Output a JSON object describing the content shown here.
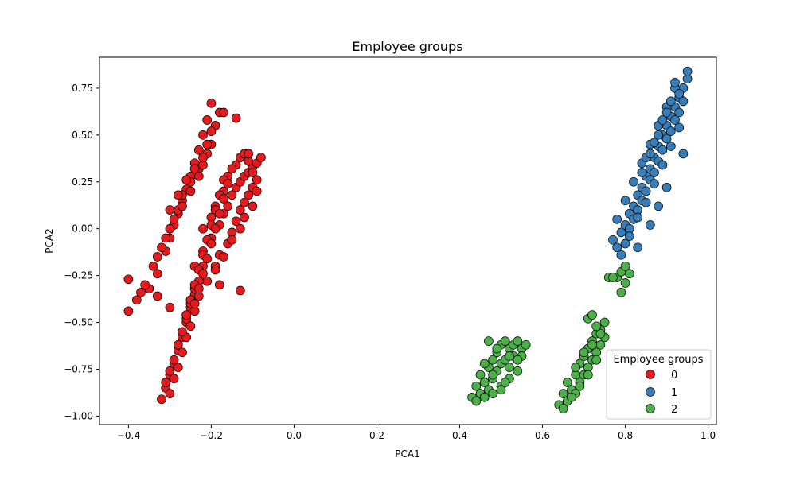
{
  "chart_data": {
    "type": "scatter",
    "title": "Employee groups",
    "xlabel": "PCA1",
    "ylabel": "PCA2",
    "xlim": [
      -0.47,
      1.02
    ],
    "ylim": [
      -1.045,
      0.915
    ],
    "xticks": [
      -0.4,
      -0.2,
      0.0,
      0.2,
      0.4,
      0.6,
      0.8,
      1.0
    ],
    "xtick_labels": [
      "−0.4",
      "−0.2",
      "0.0",
      "0.2",
      "0.4",
      "0.6",
      "0.8",
      "1.0"
    ],
    "yticks": [
      -1.0,
      -0.75,
      -0.5,
      -0.25,
      0.0,
      0.25,
      0.5,
      0.75
    ],
    "ytick_labels": [
      "−1.00",
      "−0.75",
      "−0.50",
      "−0.25",
      "0.00",
      "0.25",
      "0.50",
      "0.75"
    ],
    "grid": false,
    "legend": {
      "title": "Employee groups",
      "placement": "lower right"
    },
    "series": [
      {
        "name": "0",
        "color": "#e41a1c",
        "x": [
          -0.4,
          -0.38,
          -0.35,
          -0.33,
          -0.31,
          -0.3,
          -0.29,
          -0.28,
          -0.27,
          -0.26,
          -0.25,
          -0.24,
          -0.23,
          -0.22,
          -0.21,
          -0.36,
          -0.34,
          -0.32,
          -0.3,
          -0.28,
          -0.27,
          -0.25,
          -0.23,
          -0.21,
          -0.33,
          -0.31,
          -0.29,
          -0.27,
          -0.25,
          -0.23,
          -0.22,
          -0.2,
          -0.19,
          -0.3,
          -0.28,
          -0.26,
          -0.24,
          -0.22,
          -0.21,
          -0.2,
          -0.18,
          -0.24,
          -0.22,
          -0.2,
          -0.18,
          -0.17,
          -0.16,
          -0.15,
          -0.14,
          -0.13,
          -0.12,
          -0.11,
          -0.1,
          -0.09,
          -0.08,
          -0.21,
          -0.19,
          -0.18,
          -0.16,
          -0.15,
          -0.14,
          -0.13,
          -0.12,
          -0.11,
          -0.1,
          -0.09,
          -0.22,
          -0.2,
          -0.19,
          -0.17,
          -0.16,
          -0.14,
          -0.13,
          -0.12,
          -0.11,
          -0.1,
          -0.19,
          -0.17,
          -0.15,
          -0.13,
          -0.12,
          -0.1,
          -0.09,
          -0.32,
          -0.31,
          -0.3,
          -0.29,
          -0.28,
          -0.27,
          -0.26,
          -0.25,
          -0.24,
          -0.23,
          -0.22,
          -0.3,
          -0.29,
          -0.28,
          -0.27,
          -0.26,
          -0.25,
          -0.24,
          -0.23,
          -0.31,
          -0.3,
          -0.29,
          -0.28,
          -0.27,
          -0.26,
          -0.25,
          -0.24,
          -0.26,
          -0.25,
          -0.24,
          -0.23,
          -0.22,
          -0.21,
          -0.2,
          -0.19,
          -0.18,
          -0.17,
          -0.24,
          -0.23,
          -0.22,
          -0.21,
          -0.2,
          -0.19,
          -0.18,
          -0.17,
          -0.16,
          -0.15,
          -0.4,
          -0.37,
          -0.33,
          -0.3,
          -0.2,
          -0.17,
          -0.14,
          -0.11,
          -0.13,
          -0.18
        ],
        "y": [
          -0.44,
          -0.38,
          -0.32,
          -0.24,
          -0.12,
          -0.05,
          0.02,
          0.08,
          0.15,
          0.21,
          0.28,
          0.35,
          0.42,
          0.5,
          0.58,
          -0.3,
          -0.2,
          -0.1,
          0.0,
          0.1,
          0.18,
          0.25,
          0.32,
          0.4,
          -0.15,
          -0.05,
          0.05,
          0.12,
          0.2,
          0.28,
          0.34,
          0.45,
          0.55,
          0.1,
          0.18,
          0.26,
          0.32,
          0.38,
          0.45,
          0.52,
          0.62,
          -0.2,
          -0.12,
          -0.05,
          0.02,
          0.08,
          0.12,
          0.18,
          0.22,
          0.25,
          0.28,
          0.3,
          0.33,
          0.35,
          0.38,
          -0.28,
          -0.2,
          -0.14,
          -0.08,
          -0.02,
          0.04,
          0.1,
          0.14,
          0.18,
          0.22,
          0.26,
          0.0,
          0.06,
          0.12,
          0.2,
          0.28,
          0.34,
          0.38,
          0.4,
          0.36,
          0.3,
          -0.22,
          -0.15,
          -0.06,
          0.0,
          0.06,
          0.12,
          0.2,
          -0.91,
          -0.85,
          -0.78,
          -0.72,
          -0.65,
          -0.58,
          -0.5,
          -0.42,
          -0.35,
          -0.28,
          -0.2,
          -0.88,
          -0.8,
          -0.74,
          -0.66,
          -0.58,
          -0.52,
          -0.44,
          -0.36,
          -0.82,
          -0.76,
          -0.7,
          -0.62,
          -0.55,
          -0.48,
          -0.4,
          -0.32,
          -0.46,
          -0.38,
          -0.3,
          -0.22,
          -0.14,
          -0.06,
          0.02,
          0.1,
          0.18,
          0.26,
          -0.4,
          -0.32,
          -0.24,
          -0.16,
          -0.08,
          0.0,
          0.08,
          0.16,
          0.24,
          0.32,
          -0.27,
          -0.34,
          -0.36,
          -0.42,
          0.67,
          0.62,
          0.59,
          0.4,
          -0.33,
          -0.3
        ]
      },
      {
        "name": "1",
        "color": "#377eb8",
        "x": [
          0.77,
          0.78,
          0.79,
          0.8,
          0.8,
          0.81,
          0.81,
          0.82,
          0.82,
          0.83,
          0.83,
          0.84,
          0.84,
          0.85,
          0.85,
          0.86,
          0.86,
          0.87,
          0.87,
          0.88,
          0.88,
          0.89,
          0.89,
          0.9,
          0.9,
          0.91,
          0.91,
          0.92,
          0.92,
          0.93,
          0.93,
          0.94,
          0.94,
          0.95,
          0.78,
          0.8,
          0.82,
          0.84,
          0.86,
          0.88,
          0.9,
          0.92,
          0.81,
          0.83,
          0.85,
          0.87,
          0.89,
          0.91,
          0.93,
          0.79,
          0.83,
          0.86,
          0.88,
          0.9,
          0.94,
          0.85,
          0.87,
          0.89,
          0.91,
          0.92,
          0.84,
          0.86,
          0.88,
          0.9,
          0.93,
          0.95
        ],
        "y": [
          -0.06,
          -0.1,
          -0.02,
          0.02,
          -0.08,
          0.08,
          0.0,
          0.12,
          0.05,
          0.18,
          0.1,
          0.22,
          0.15,
          0.28,
          0.2,
          0.32,
          0.26,
          0.38,
          0.3,
          0.44,
          0.36,
          0.5,
          0.42,
          0.55,
          0.48,
          0.6,
          0.52,
          0.65,
          0.58,
          0.7,
          0.62,
          0.75,
          0.68,
          0.8,
          0.05,
          0.15,
          0.25,
          0.35,
          0.45,
          0.55,
          0.65,
          0.75,
          -0.04,
          0.06,
          0.14,
          0.24,
          0.34,
          0.44,
          0.54,
          -0.14,
          -0.1,
          0.02,
          0.12,
          0.22,
          0.4,
          0.38,
          0.46,
          0.58,
          0.68,
          0.78,
          0.3,
          0.4,
          0.5,
          0.62,
          0.72,
          0.84
        ]
      },
      {
        "name": "2",
        "color": "#4daf4a",
        "x": [
          0.43,
          0.44,
          0.45,
          0.45,
          0.46,
          0.47,
          0.47,
          0.48,
          0.48,
          0.49,
          0.49,
          0.5,
          0.5,
          0.51,
          0.51,
          0.52,
          0.52,
          0.53,
          0.53,
          0.54,
          0.55,
          0.55,
          0.56,
          0.44,
          0.46,
          0.48,
          0.5,
          0.52,
          0.54,
          0.46,
          0.48,
          0.5,
          0.52,
          0.54,
          0.47,
          0.49,
          0.51,
          0.64,
          0.65,
          0.66,
          0.66,
          0.67,
          0.68,
          0.68,
          0.69,
          0.69,
          0.7,
          0.7,
          0.71,
          0.71,
          0.72,
          0.72,
          0.73,
          0.73,
          0.74,
          0.74,
          0.75,
          0.65,
          0.67,
          0.69,
          0.71,
          0.73,
          0.75,
          0.68,
          0.7,
          0.72,
          0.74,
          0.71,
          0.72,
          0.73,
          0.76,
          0.78,
          0.79,
          0.8,
          0.81,
          0.8,
          0.77,
          0.79
        ],
        "y": [
          -0.9,
          -0.84,
          -0.88,
          -0.78,
          -0.82,
          -0.74,
          -0.86,
          -0.7,
          -0.8,
          -0.66,
          -0.76,
          -0.62,
          -0.72,
          -0.6,
          -0.7,
          -0.64,
          -0.74,
          -0.62,
          -0.68,
          -0.6,
          -0.64,
          -0.68,
          -0.62,
          -0.92,
          -0.9,
          -0.88,
          -0.84,
          -0.8,
          -0.76,
          -0.72,
          -0.78,
          -0.86,
          -0.68,
          -0.7,
          -0.6,
          -0.64,
          -0.82,
          -0.94,
          -0.88,
          -0.92,
          -0.82,
          -0.86,
          -0.78,
          -0.88,
          -0.72,
          -0.82,
          -0.68,
          -0.78,
          -0.64,
          -0.74,
          -0.6,
          -0.7,
          -0.56,
          -0.66,
          -0.54,
          -0.62,
          -0.5,
          -0.96,
          -0.9,
          -0.84,
          -0.78,
          -0.7,
          -0.58,
          -0.74,
          -0.66,
          -0.62,
          -0.56,
          -0.48,
          -0.46,
          -0.52,
          -0.26,
          -0.26,
          -0.23,
          -0.2,
          -0.24,
          -0.29,
          -0.26,
          -0.34
        ]
      }
    ]
  }
}
